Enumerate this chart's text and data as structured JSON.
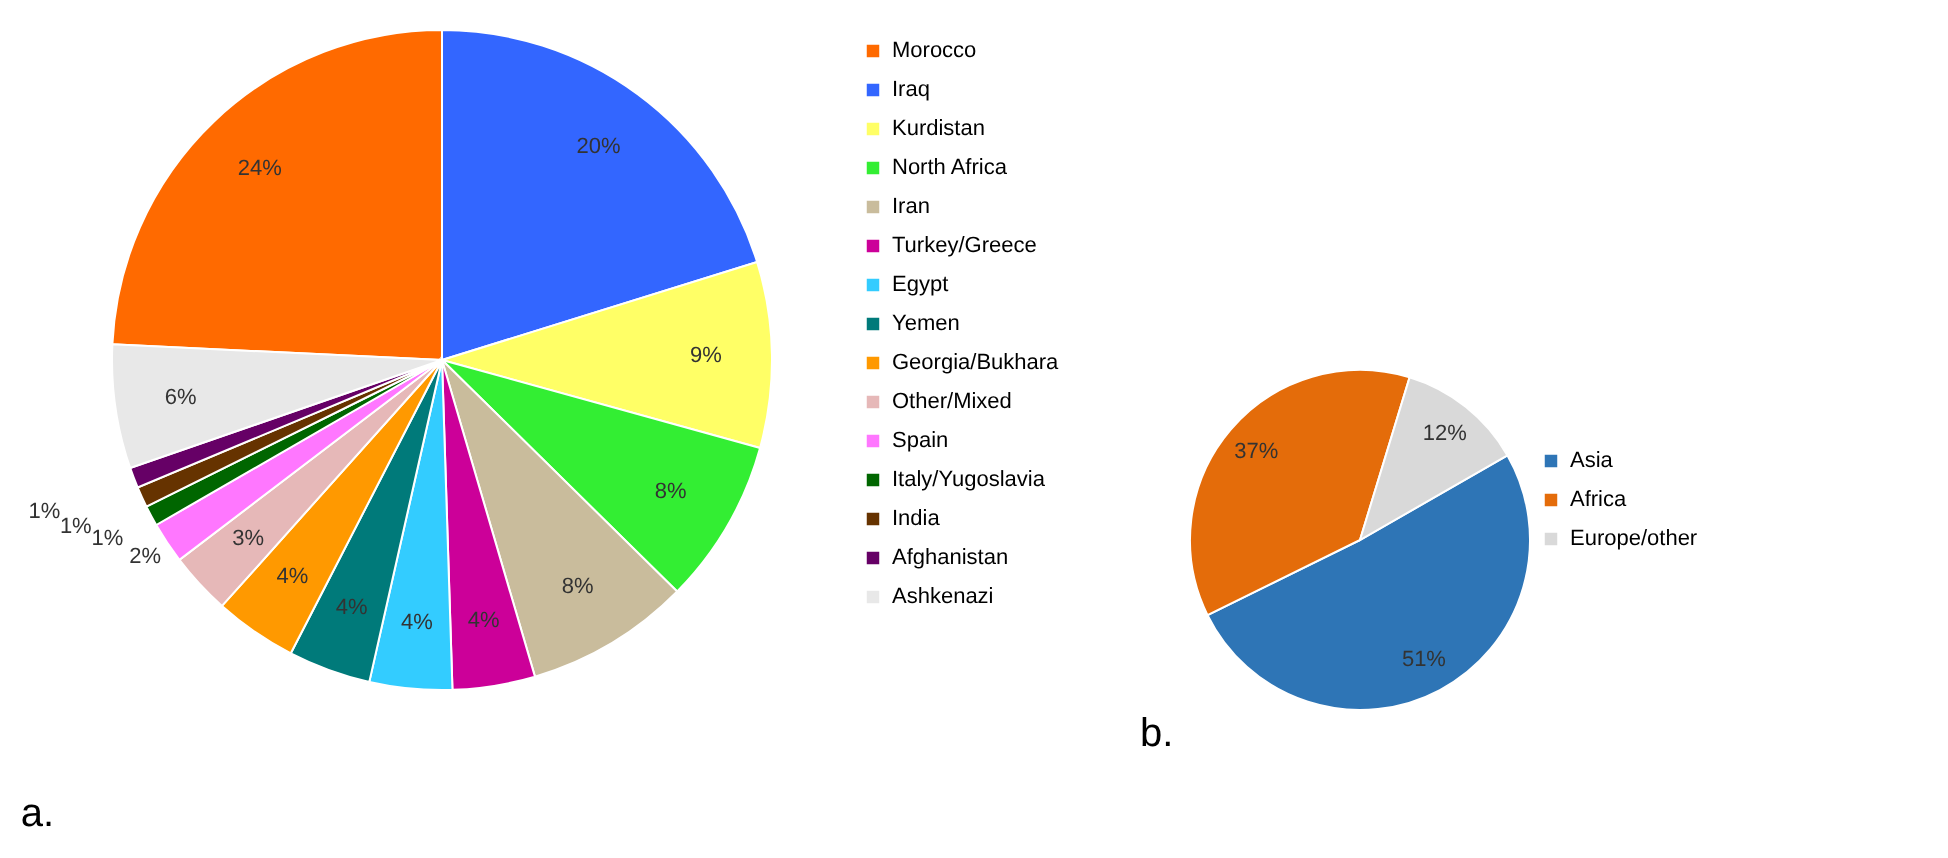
{
  "chart_data": [
    {
      "type": "pie",
      "annotations": [
        "a."
      ],
      "legend": "right",
      "categories": [
        "Morocco",
        "Iraq",
        "Kurdistan",
        "North Africa",
        "Iran",
        "Turkey/Greece",
        "Egypt",
        "Yemen",
        "Georgia/Bukhara",
        "Other/Mixed",
        "Spain",
        "Italy/Yugoslavia",
        "India",
        "Afghanistan",
        "Ashkenazi"
      ],
      "values": [
        24,
        20,
        9,
        8,
        8,
        4,
        4,
        4,
        4,
        3,
        2,
        1,
        1,
        1,
        6
      ],
      "value_labels": [
        "24%",
        "20%",
        "9%",
        "8%",
        "8%",
        "4%",
        "4%",
        "4%",
        "4%",
        "3%",
        "2%",
        "1%",
        "1%",
        "1%",
        "6%"
      ],
      "colors": [
        "#ff6a00",
        "#3366ff",
        "#ffff66",
        "#33ee33",
        "#c9bc9c",
        "#cc0099",
        "#33ccff",
        "#007a7a",
        "#ff9900",
        "#e6b8b8",
        "#ff77ff",
        "#006600",
        "#663300",
        "#660066",
        "#e8e8e8"
      ]
    },
    {
      "type": "pie",
      "annotations": [
        "b."
      ],
      "legend": "right",
      "categories": [
        "Asia",
        "Africa",
        "Europe/other"
      ],
      "values": [
        51,
        37,
        12
      ],
      "value_labels": [
        "51%",
        "37%",
        "12%"
      ],
      "colors": [
        "#2e75b6",
        "#e46c0a",
        "#d9d9d9"
      ]
    }
  ]
}
